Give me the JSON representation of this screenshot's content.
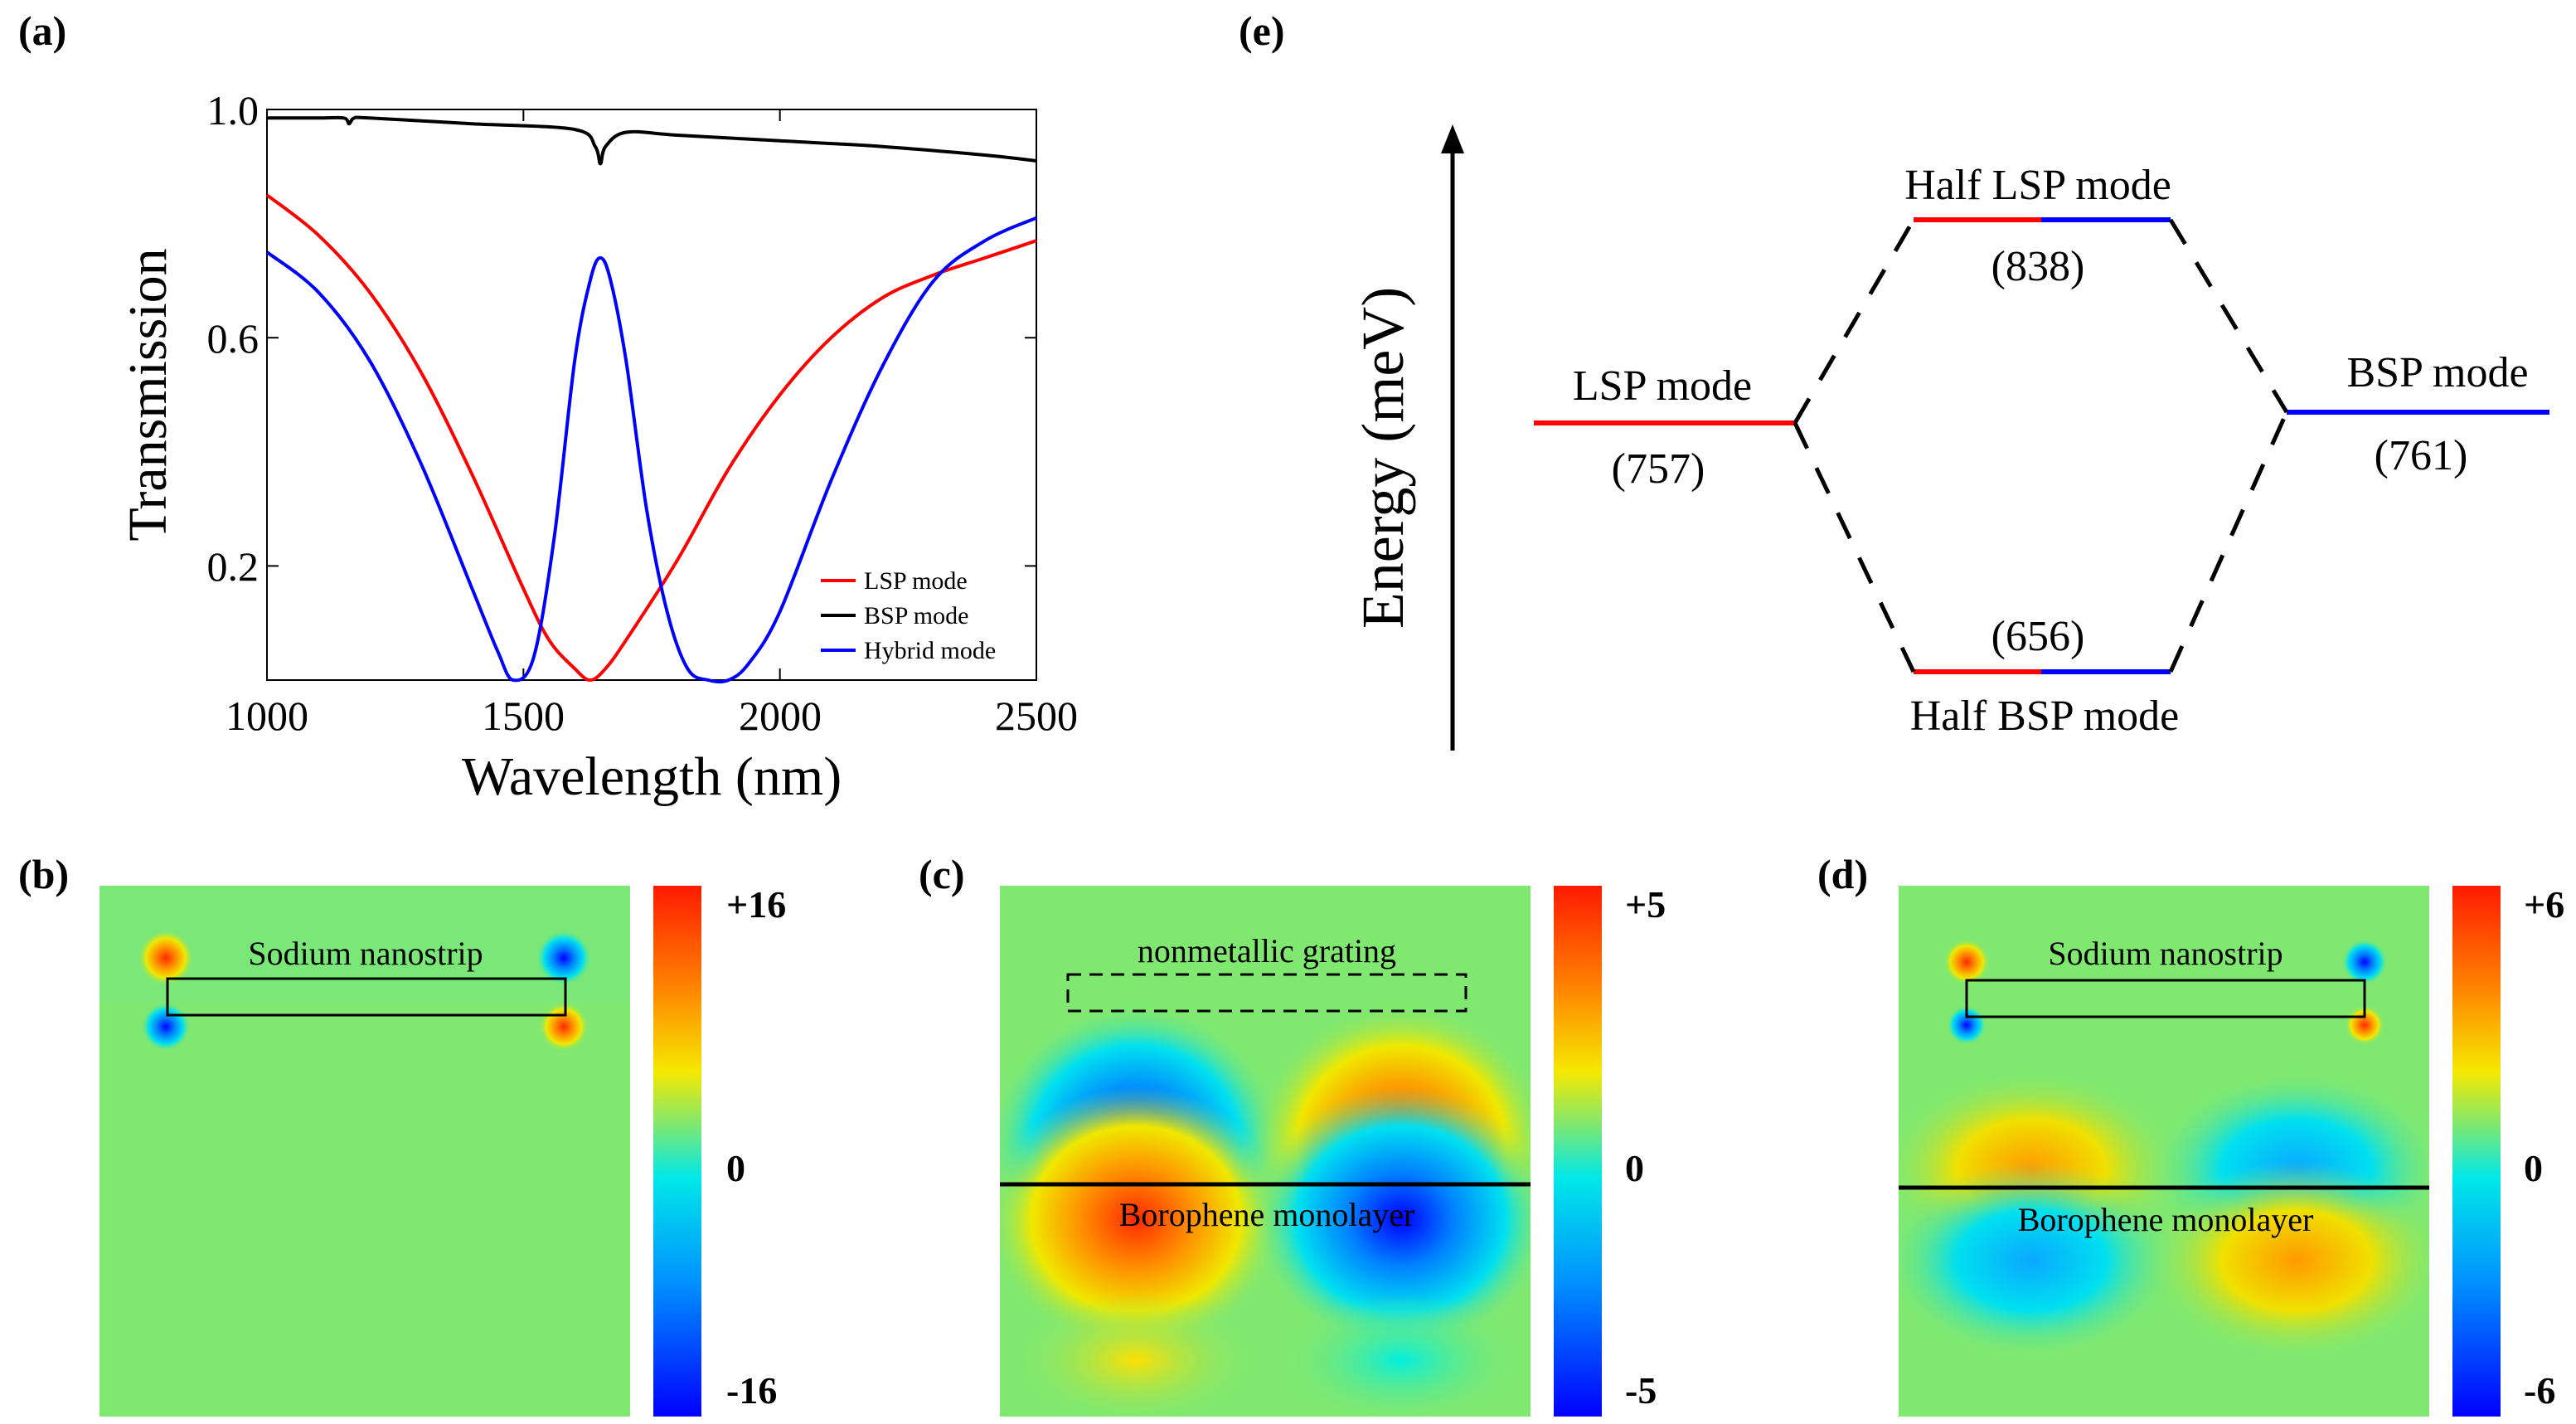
{
  "panels": {
    "a": "(a)",
    "b": "(b)",
    "c": "(c)",
    "d": "(d)",
    "e": "(e)"
  },
  "chart_data": [
    {
      "panel": "(a)",
      "type": "line",
      "title": "",
      "xlabel": "Wavelength (nm)",
      "ylabel": "Transmission",
      "xlim": [
        1000,
        2500
      ],
      "ylim": [
        0,
        1.0
      ],
      "xticks": [
        "1000",
        "1500",
        "2000",
        "2500"
      ],
      "yticks": [
        "0.2",
        "0.6",
        "1.0"
      ],
      "legend_position": "bottom-right",
      "series": [
        {
          "name": "LSP mode",
          "color": "#ff0000",
          "x": [
            1000,
            1100,
            1200,
            1300,
            1400,
            1500,
            1550,
            1600,
            1630,
            1660,
            1700,
            1800,
            1900,
            2000,
            2100,
            2200,
            2300,
            2400,
            2500
          ],
          "y": [
            0.85,
            0.78,
            0.68,
            0.54,
            0.36,
            0.16,
            0.07,
            0.02,
            0.0,
            0.02,
            0.07,
            0.21,
            0.37,
            0.5,
            0.6,
            0.67,
            0.71,
            0.74,
            0.77
          ]
        },
        {
          "name": "BSP mode",
          "color": "#000000",
          "x": [
            1000,
            1100,
            1150,
            1160,
            1170,
            1200,
            1400,
            1600,
            1640,
            1650,
            1660,
            1700,
            1800,
            2000,
            2200,
            2400,
            2500
          ],
          "y": [
            0.985,
            0.985,
            0.985,
            0.975,
            0.985,
            0.985,
            0.975,
            0.965,
            0.935,
            0.905,
            0.935,
            0.96,
            0.955,
            0.945,
            0.935,
            0.92,
            0.91
          ]
        },
        {
          "name": "Hybrid mode",
          "color": "#0000ff",
          "x": [
            1000,
            1100,
            1200,
            1300,
            1400,
            1450,
            1480,
            1520,
            1560,
            1600,
            1630,
            1650,
            1670,
            1700,
            1740,
            1780,
            1820,
            1860,
            1900,
            1940,
            2000,
            2100,
            2200,
            2300,
            2400,
            2500
          ],
          "y": [
            0.75,
            0.68,
            0.56,
            0.38,
            0.16,
            0.05,
            0.0,
            0.04,
            0.25,
            0.56,
            0.7,
            0.74,
            0.7,
            0.56,
            0.3,
            0.12,
            0.02,
            0.0,
            0.0,
            0.03,
            0.12,
            0.35,
            0.55,
            0.7,
            0.77,
            0.81
          ]
        }
      ]
    },
    {
      "panel": "(e)",
      "type": "diagram",
      "ylabel": "Energy (meV)",
      "levels": [
        {
          "name": "LSP mode",
          "value": "(757)",
          "energy": 757,
          "color": "#ff0000"
        },
        {
          "name": "BSP mode",
          "value": "(761)",
          "energy": 761,
          "color": "#0000ff"
        },
        {
          "name": "Half LSP mode",
          "value": "(838)",
          "energy": 838
        },
        {
          "name": "Half BSP mode",
          "value": "(656)",
          "energy": 656
        }
      ]
    },
    {
      "panel": "(b)",
      "type": "heatmap",
      "colorbar": {
        "max": "+16",
        "mid": "0",
        "min": "-16"
      },
      "annotations": [
        "Sodium nanostrip"
      ]
    },
    {
      "panel": "(c)",
      "type": "heatmap",
      "colorbar": {
        "max": "+5",
        "mid": "0",
        "min": "-5"
      },
      "annotations": [
        "nonmetallic grating",
        "Borophene monolayer"
      ]
    },
    {
      "panel": "(d)",
      "type": "heatmap",
      "colorbar": {
        "max": "+6",
        "mid": "0",
        "min": "-6"
      },
      "annotations": [
        "Sodium nanostrip",
        "Borophene monolayer"
      ]
    }
  ],
  "colors": {
    "red": "#ff0000",
    "blue": "#0000ff",
    "background": "#80e870"
  }
}
